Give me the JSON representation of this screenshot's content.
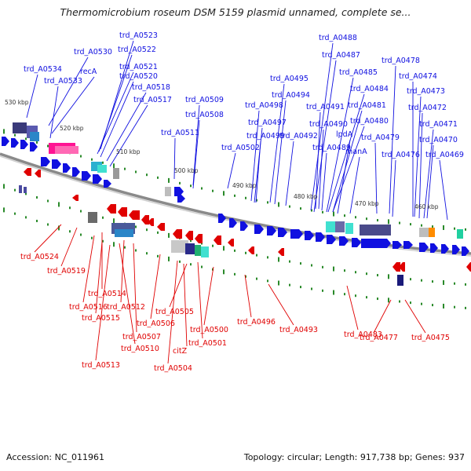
{
  "title": "Thermomicrobium roseum DSM 5159 plasmid unnamed, complete se...",
  "footer": {
    "accession": "Accession: NC_011961",
    "summary": "Topology: circular; Length: 917,738 bp; Genes: 937"
  },
  "colors": {
    "forward": "#1010e0",
    "reverse": "#e00000",
    "backbone": "#8a8a8a",
    "tick": "#2a8a2a"
  },
  "kbp_markers": [
    "530 kbp",
    "520 kbp",
    "510 kbp",
    "500 kbp",
    "490 kbp",
    "480 kbp",
    "470 kbp",
    "460 kbp"
  ],
  "forward_labels": [
    "trd_A0523",
    "trd_A0522",
    "trd_A0530",
    "trd_A0521",
    "trd_A0534",
    "recA",
    "trd_A0520",
    "trd_A0533",
    "trd_A0518",
    "trd_A0517",
    "trd_A0511",
    "trd_A0509",
    "trd_A0508",
    "trd_A0488",
    "trd_A0487",
    "trd_A0478",
    "trd_A0485",
    "trd_A0495",
    "trd_A0474",
    "trd_A0484",
    "trd_A0494",
    "trd_A0473",
    "trd_A0498",
    "trd_A0491",
    "trd_A0481",
    "trd_A0472",
    "trd_A0497",
    "trd_A0490",
    "lpdA",
    "trd_A0480",
    "trd_A0471",
    "trd_A0499",
    "trd_A0492",
    "trd_A0479",
    "trd_A0470",
    "trd_A0502",
    "trd_A0489",
    "manA",
    "trd_A0476",
    "trd_A0469"
  ],
  "reverse_labels": [
    "trd_A0524",
    "trd_A0519",
    "trd_A0514",
    "trd_A0516",
    "trd_A0512",
    "trd_A0515",
    "trd_A0505",
    "trd_A0506",
    "trd_A0500",
    "trd_A0507",
    "trd_A0501",
    "trd_A0510",
    "citZ",
    "trd_A0513",
    "trd_A0504",
    "trd_A0496",
    "trd_A0493",
    "trd_A0483",
    "trd_A0477",
    "trd_A0475"
  ]
}
